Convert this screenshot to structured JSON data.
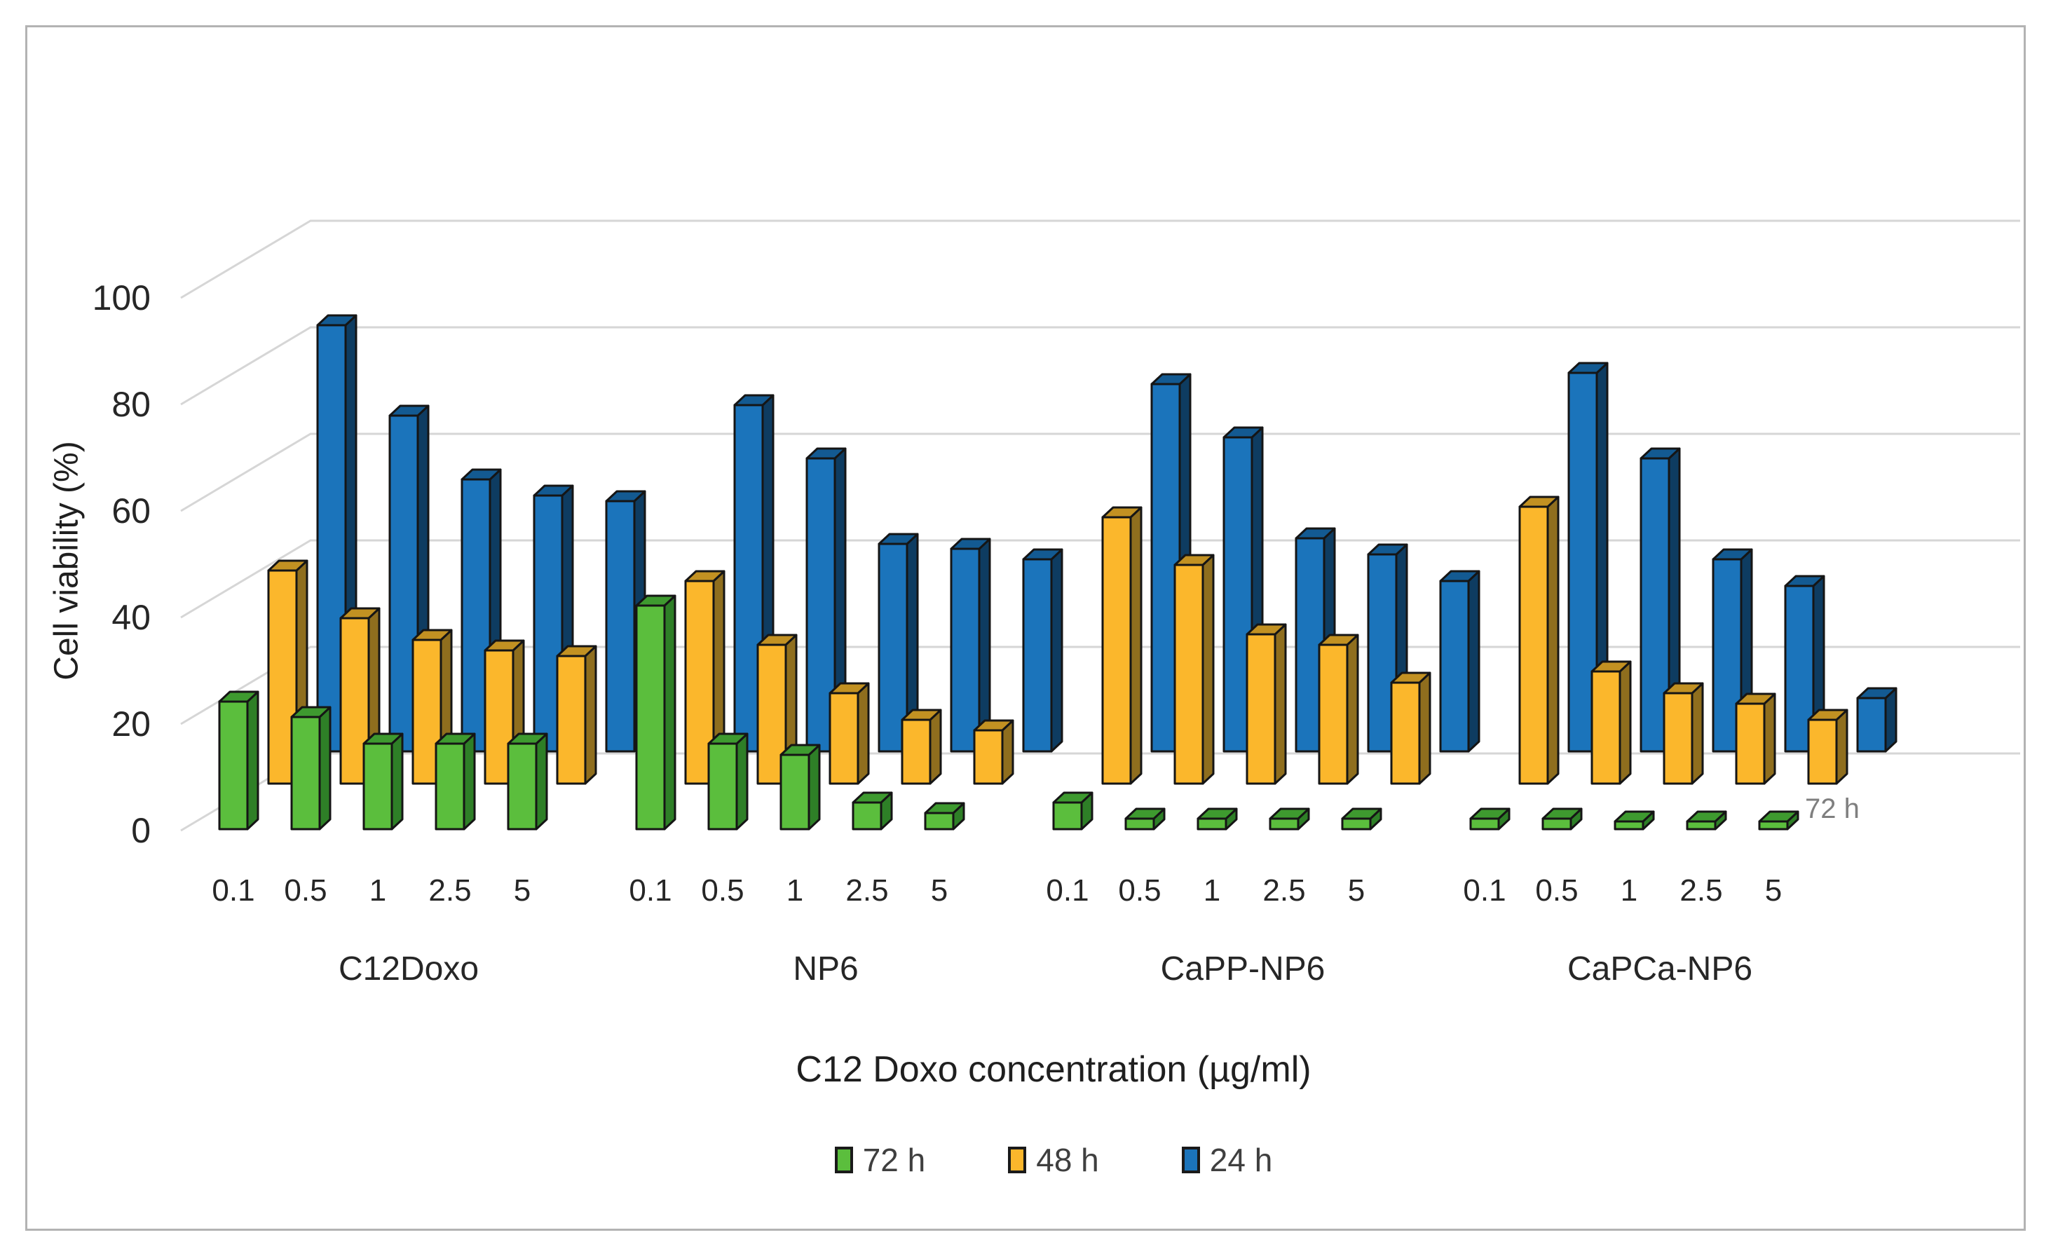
{
  "figure": {
    "background": "#ffffff",
    "frame_color": "#b3b3b3"
  },
  "chart_data": {
    "type": "bar",
    "projection": "3d-column",
    "title": "",
    "ylabel": "Cell viability (%)",
    "xlabel": "C12 Doxo concentration (µg/ml)",
    "depth_axis_label": "72 h",
    "y_ticks": [
      0,
      20,
      40,
      60,
      80,
      100
    ],
    "ylim": [
      0,
      100
    ],
    "grid": true,
    "legend_position": "bottom",
    "groups": [
      "C12Doxo",
      "NP6",
      "CaPP-NP6",
      "CaPCa-NP6"
    ],
    "concentrations": [
      "0.1",
      "0.5",
      "1",
      "2.5",
      "5"
    ],
    "series": [
      {
        "name": "72 h",
        "color": "#5BBE3D",
        "side_color": "#2E7F27",
        "top_color": "#3E9A2F",
        "values": [
          [
            24,
            21,
            16,
            16,
            16
          ],
          [
            42,
            16,
            14,
            5,
            3
          ],
          [
            5,
            2,
            2,
            2,
            2
          ],
          [
            2,
            2,
            1.5,
            1.5,
            1.5
          ]
        ]
      },
      {
        "name": "48 h",
        "color": "#FBB72C",
        "side_color": "#8F6E1E",
        "top_color": "#C29122",
        "values": [
          [
            40,
            31,
            27,
            25,
            24
          ],
          [
            38,
            26,
            17,
            12,
            10
          ],
          [
            50,
            41,
            28,
            26,
            19
          ],
          [
            52,
            21,
            17,
            15,
            12
          ]
        ]
      },
      {
        "name": "24 h",
        "color": "#1B74BB",
        "side_color": "#0E3C61",
        "top_color": "#135A92",
        "values": [
          [
            80,
            63,
            51,
            48,
            47
          ],
          [
            65,
            55,
            39,
            38,
            36
          ],
          [
            69,
            59,
            40,
            37,
            32
          ],
          [
            71,
            55,
            36,
            31,
            10
          ]
        ]
      }
    ]
  }
}
